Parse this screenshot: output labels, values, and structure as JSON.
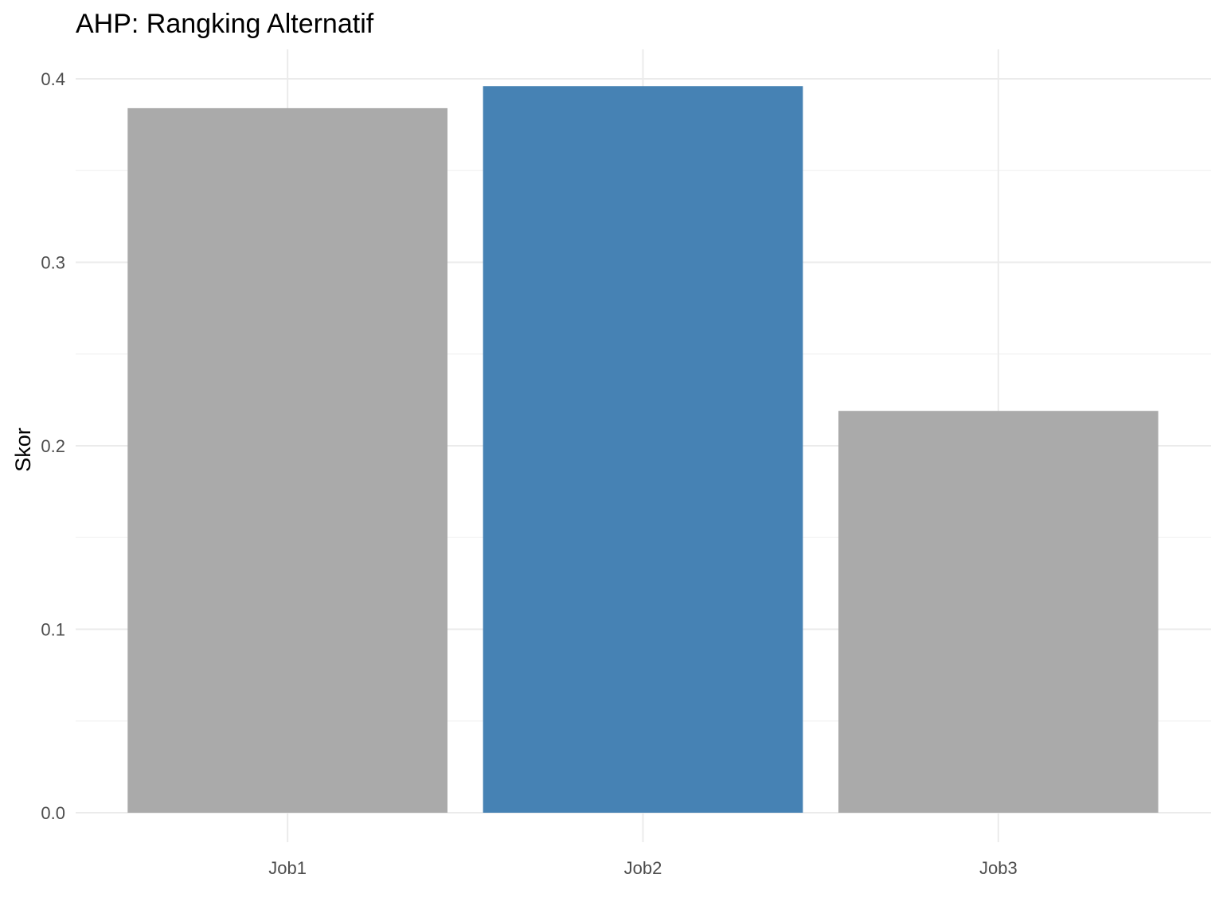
{
  "chart_data": {
    "type": "bar",
    "title": "AHP: Rangking Alternatif",
    "xlabel": "",
    "ylabel": "Skor",
    "categories": [
      "Job1",
      "Job2",
      "Job3"
    ],
    "values": [
      0.384,
      0.396,
      0.219
    ],
    "bar_colors": [
      "#aaaaaa",
      "#4682b4",
      "#aaaaaa"
    ],
    "ylim": [
      0,
      0.4
    ],
    "y_ticks": [
      0.0,
      0.1,
      0.2,
      0.3,
      0.4
    ],
    "y_tick_labels": [
      "0.0",
      "0.1",
      "0.2",
      "0.3",
      "0.4"
    ],
    "grid": true,
    "legend": "none"
  }
}
